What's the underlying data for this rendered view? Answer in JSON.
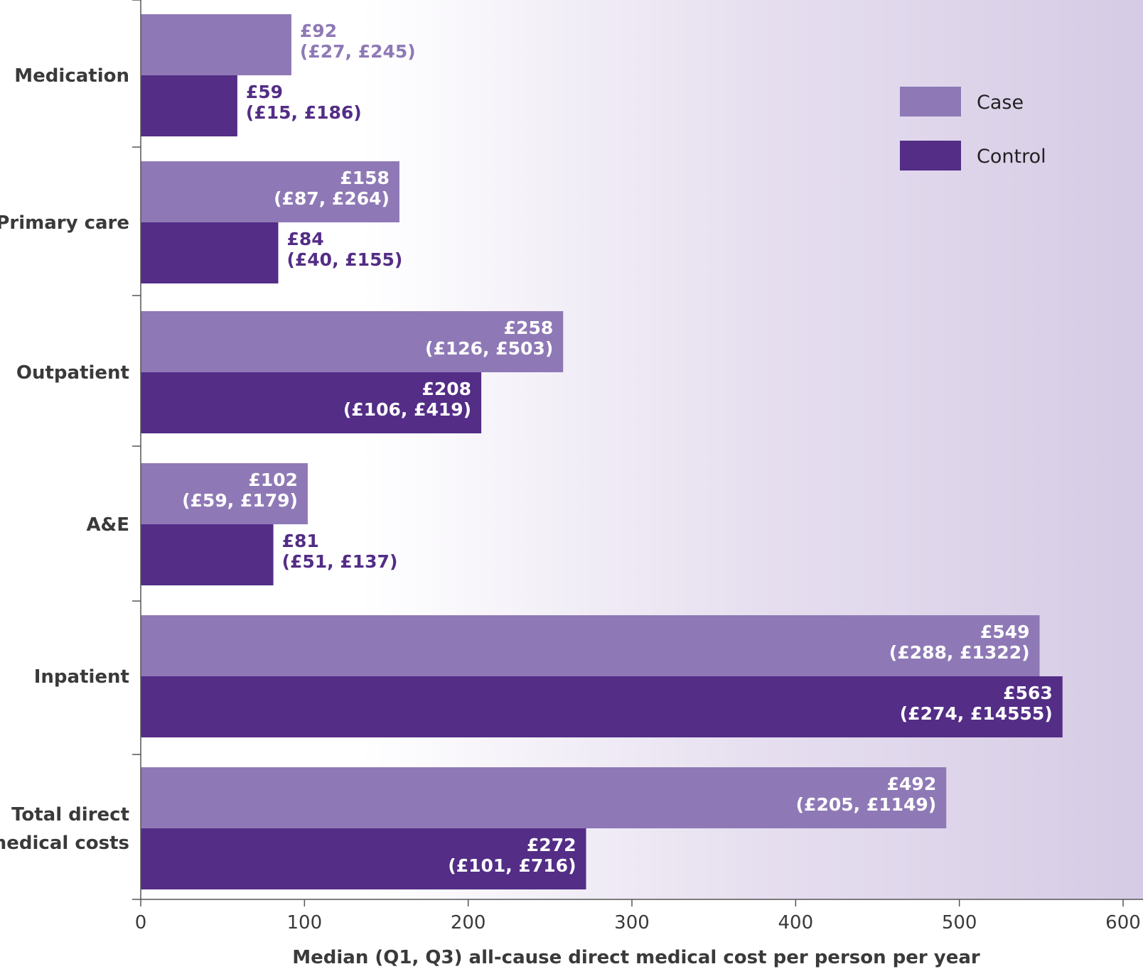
{
  "chart_data": {
    "type": "bar",
    "orientation": "horizontal",
    "categories": [
      "Medication",
      "Primary care",
      "Outpatient",
      "A&E",
      "Inpatient",
      "Total direct medical costs"
    ],
    "category_lines": [
      [
        "Medication"
      ],
      [
        "Primary care"
      ],
      [
        "Outpatient"
      ],
      [
        "A&E"
      ],
      [
        "Inpatient"
      ],
      [
        "Total direct",
        "medical costs"
      ]
    ],
    "series": [
      {
        "name": "Case",
        "color": "#8e79b6",
        "values": [
          92,
          158,
          258,
          102,
          549,
          492
        ],
        "labels": [
          [
            "£92",
            "(£27, £245)"
          ],
          [
            "£158",
            "(£87, £264)"
          ],
          [
            "£258",
            "(£126, £503)"
          ],
          [
            "£102",
            "(£59, £179)"
          ],
          [
            "£549",
            "(£288, £1322)"
          ],
          [
            "£492",
            "(£205, £1149)"
          ]
        ]
      },
      {
        "name": "Control",
        "color": "#532d86",
        "values": [
          59,
          84,
          208,
          81,
          563,
          272
        ],
        "labels": [
          [
            "£59",
            "(£15, £186)"
          ],
          [
            "£84",
            "(£40, £155)"
          ],
          [
            "£208",
            "(£106, £419)"
          ],
          [
            "£81",
            "(£51, £137)"
          ],
          [
            "£563",
            "(£274, £14555)"
          ],
          [
            "£272",
            "(£101, £716)"
          ]
        ]
      }
    ],
    "xlabel": "Median (Q1, Q3) all-cause direct medical cost per person per year",
    "ylabel": "",
    "xlim": [
      0,
      600
    ],
    "xticks": [
      0,
      100,
      200,
      300,
      400,
      500,
      600
    ],
    "legend": "top-right",
    "grid": false,
    "background": "gradient-white-to-lavender"
  }
}
